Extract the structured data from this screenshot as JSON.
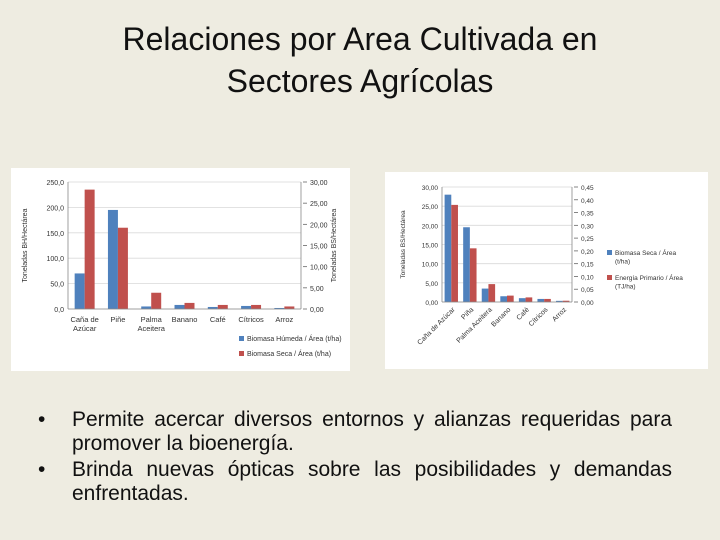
{
  "slide": {
    "title_line1": "Relaciones por Area Cultivada en",
    "title_line2": "Sectores Agrícolas",
    "bullet_char": "•",
    "bullets": [
      "Permite acercar diversos entornos y alianzas requeridas para promover la bioenergía.",
      "Brinda nuevas ópticas sobre las posibilidades y demandas enfrentadas."
    ]
  },
  "chart_data": [
    {
      "type": "bar",
      "categories": [
        "Caña de Azúcar",
        "Piñe",
        "Palma Aceitera",
        "Banano",
        "Café",
        "Cítricos",
        "Arroz"
      ],
      "category_lines": [
        [
          "Caña de",
          "Azúcar"
        ],
        [
          "Piñe"
        ],
        [
          "Palma",
          "Aceitera"
        ],
        [
          "Banano"
        ],
        [
          "Café"
        ],
        [
          "Cítricos"
        ],
        [
          "Arroz"
        ]
      ],
      "ylabel": "Toneladas BH/Hectárea",
      "y2label": "Toneladas BS/Hectárea",
      "ylim": [
        0,
        250
      ],
      "y2lim": [
        0,
        30
      ],
      "yticks": [
        "0,0",
        "50,0",
        "100,0",
        "150,0",
        "200,0",
        "250,0"
      ],
      "y2ticks": [
        "0,00",
        "5,00",
        "10,00",
        "15,00",
        "20,00",
        "25,00",
        "30,00"
      ],
      "legend_position": "bottom-right",
      "series": [
        {
          "name": "Biomasa Húmeda / Área (t/ha)",
          "axis": "left",
          "color": "#4f81bd",
          "values": [
            70,
            195,
            5,
            8,
            4,
            6,
            2
          ]
        },
        {
          "name": "Biomasa Seca / Área (t/ha)",
          "axis": "left",
          "color": "#c0504d",
          "values": [
            235,
            160,
            32,
            12,
            8,
            8,
            5
          ]
        }
      ]
    },
    {
      "type": "bar",
      "categories": [
        "Caña de Azúcar",
        "Piña",
        "Palma Aceitera",
        "Banano",
        "Café",
        "Cítricos",
        "Arroz"
      ],
      "ylabel": "Toneladas BS/Hectárea",
      "ylim": [
        0,
        30
      ],
      "y2lim": [
        0,
        0.45
      ],
      "yticks": [
        "0,00",
        "5,00",
        "10,00",
        "15,00",
        "20,00",
        "25,00",
        "30,00"
      ],
      "y2ticks": [
        "0,00",
        "0,05",
        "0,10",
        "0,15",
        "0,20",
        "0,25",
        "0,30",
        "0,35",
        "0,40",
        "0,45"
      ],
      "legend_position": "right",
      "series": [
        {
          "name": "Biomasa Seca / Área (t/ha)",
          "axis": "left",
          "color": "#4f81bd",
          "values": [
            28,
            19.5,
            3.5,
            1.5,
            1.0,
            0.8,
            0.3
          ]
        },
        {
          "name": "Energía Primario / Área (TJ/ha)",
          "axis": "right",
          "color": "#c0504d",
          "values": [
            0.38,
            0.21,
            0.07,
            0.025,
            0.018,
            0.012,
            0.005
          ]
        }
      ]
    }
  ]
}
